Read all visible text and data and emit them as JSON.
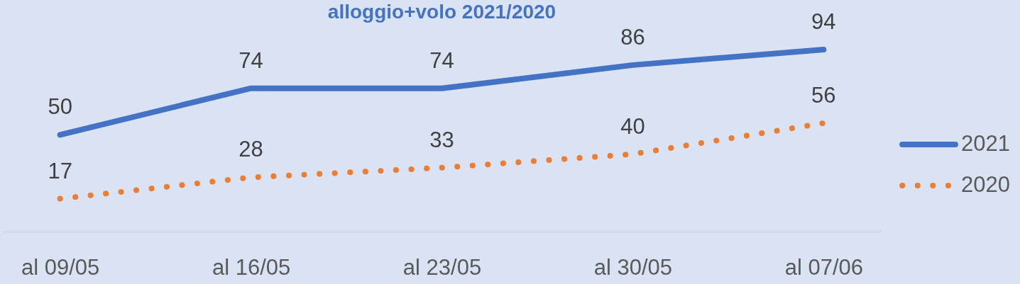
{
  "chart_data": {
    "type": "line",
    "title": "alloggio+volo 2021/2020",
    "categories": [
      "al 09/05",
      "al 16/05",
      "al 23/05",
      "al 30/05",
      "al 07/06"
    ],
    "series": [
      {
        "name": "2021",
        "color": "#4472c4",
        "line_style": "solid",
        "values": [
          50,
          74,
          74,
          86,
          94
        ]
      },
      {
        "name": "2020",
        "color": "#ed7d31",
        "line_style": "dotted",
        "values": [
          17,
          28,
          33,
          40,
          56
        ]
      }
    ],
    "data_labels": true,
    "legend": "right",
    "tick_labels": "x",
    "grid": false,
    "marker": "none"
  }
}
